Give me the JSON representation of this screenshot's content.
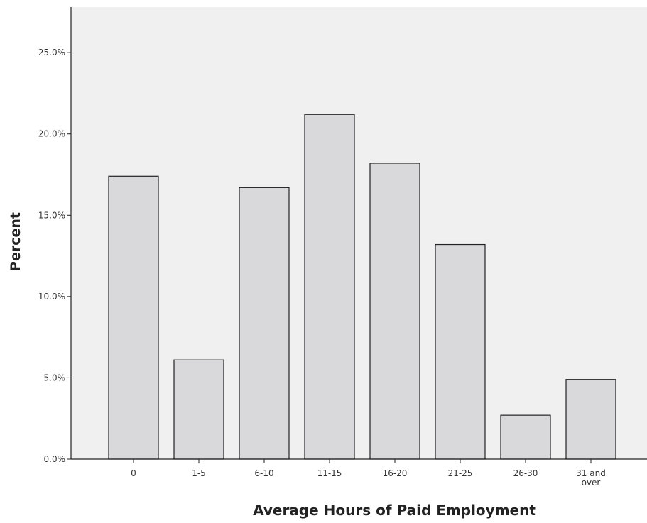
{
  "chart_data": {
    "type": "bar",
    "title": "",
    "xlabel": "Average Hours of Paid Employment",
    "ylabel": "Percent",
    "categories": [
      "0",
      "1-5",
      "6-10",
      "11-15",
      "16-20",
      "21-25",
      "26-30",
      "31 and over"
    ],
    "values": [
      17.4,
      6.1,
      16.7,
      21.2,
      18.2,
      13.2,
      2.7,
      4.9
    ],
    "ylim": [
      0,
      27.8
    ],
    "yticks": [
      0,
      5,
      10,
      15,
      20,
      25
    ],
    "ytick_labels": [
      "0.0%",
      "5.0%",
      "10.0%",
      "15.0%",
      "20.0%",
      "25.0%"
    ],
    "grid": false,
    "legend": "none",
    "colors": {
      "plot_background": "#f0f0f0",
      "bar_fill": "#d9d9db",
      "bar_stroke": "#222222",
      "axis": "#222222"
    }
  }
}
